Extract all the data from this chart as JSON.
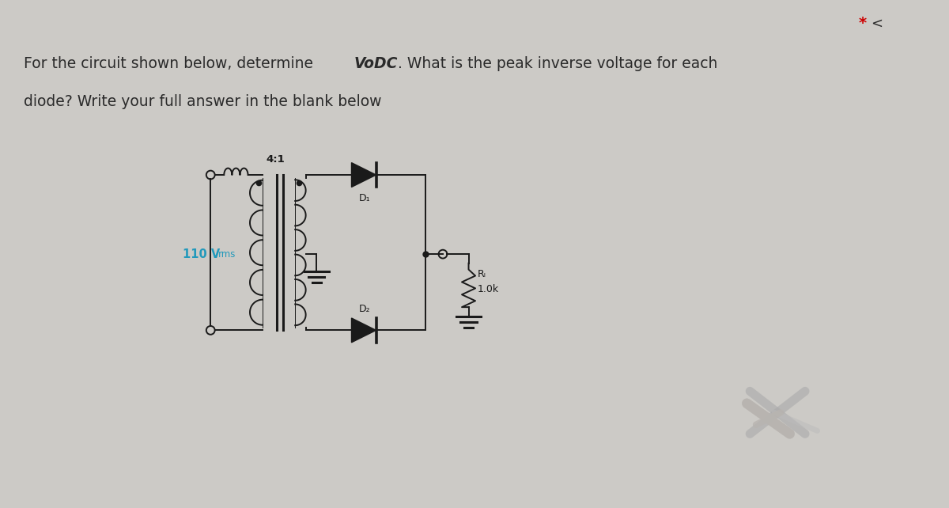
{
  "bg_color": "#cccac6",
  "text_color": "#2a2a2a",
  "voltage_label": "110 V",
  "voltage_rms": "rms",
  "voltage_color": "#2299bb",
  "transformer_ratio": "4:1",
  "rl_label": "Rₗ",
  "rl_value": "1.0k",
  "d1_label": "D₁",
  "d2_label": "D₂",
  "star_color": "#cc0000",
  "circuit_color": "#1a1a1a",
  "circuit_lw": 1.4,
  "fig_w": 12.0,
  "fig_h": 6.42,
  "dpi": 100
}
